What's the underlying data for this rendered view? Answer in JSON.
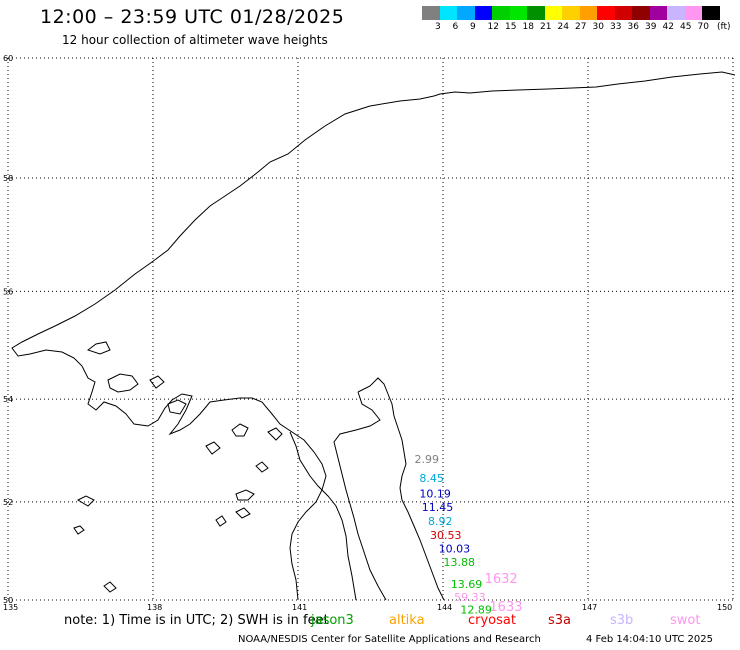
{
  "header": {
    "title": "12:00 – 23:59 UTC 01/28/2025",
    "subtitle": "12 hour collection of altimeter wave heights"
  },
  "colorbar": {
    "labels": [
      "3",
      "6",
      "9",
      "12",
      "15",
      "18",
      "21",
      "24",
      "27",
      "30",
      "33",
      "36",
      "39",
      "42",
      "45",
      "70"
    ],
    "unit": "(ft)",
    "colors": [
      "#808080",
      "#00e5ff",
      "#00a8ff",
      "#0000ff",
      "#00d000",
      "#00e600",
      "#009000",
      "#ffff00",
      "#ffd000",
      "#ffa000",
      "#ff0000",
      "#d00000",
      "#900000",
      "#a000a0",
      "#c8b4ff",
      "#ff96f0",
      "#000000"
    ]
  },
  "map": {
    "lat_labels": [
      "60",
      "58",
      "56",
      "54",
      "52",
      "50"
    ],
    "lon_labels": [
      "135",
      "138",
      "141",
      "144",
      "147",
      "150"
    ],
    "observations": [
      {
        "value": "2.99",
        "color": "#808080",
        "lon": 143.7,
        "lat": 52.85
      },
      {
        "value": "8.45",
        "color": "#00a8d8",
        "lon": 143.8,
        "lat": 52.47
      },
      {
        "value": "10.19",
        "color": "#0000c0",
        "lon": 143.8,
        "lat": 52.17
      },
      {
        "value": "11.45",
        "color": "#0000c0",
        "lon": 143.85,
        "lat": 51.9
      },
      {
        "value": "8.92",
        "color": "#00a8d8",
        "lon": 143.98,
        "lat": 51.62
      },
      {
        "value": "30.53",
        "color": "#d00000",
        "lon": 144.02,
        "lat": 51.33
      },
      {
        "value": "10.03",
        "color": "#0000c0",
        "lon": 144.2,
        "lat": 51.06
      },
      {
        "value": "13.88",
        "color": "#00c000",
        "lon": 144.3,
        "lat": 50.78
      },
      {
        "value": "13.69",
        "color": "#00c000",
        "lon": 144.45,
        "lat": 50.33
      },
      {
        "value": "59.33",
        "color": "#ff96f0",
        "lon": 144.52,
        "lat": 50.06
      },
      {
        "value": "12.89",
        "color": "#00c000",
        "lon": 144.65,
        "lat": 49.8
      },
      {
        "value": "1632",
        "color": "#ff96f0",
        "lon": 145.15,
        "lat": 50.43,
        "big": true
      },
      {
        "value": "1633",
        "color": "#ff96f0",
        "lon": 145.25,
        "lat": 49.85,
        "big": true
      }
    ]
  },
  "legend": {
    "note": "note: 1) Time is in UTC; 2) SWH is in feet",
    "satellites": [
      {
        "name": "jason3",
        "color": "#00a000"
      },
      {
        "name": "altika",
        "color": "#ffa000"
      },
      {
        "name": "cryosat",
        "color": "#ff0000"
      },
      {
        "name": "s3a",
        "color": "#c00000"
      },
      {
        "name": "s3b",
        "color": "#c8b4ff"
      },
      {
        "name": "swot",
        "color": "#ff96f0"
      }
    ]
  },
  "footer": {
    "credit": "NOAA/NESDIS Center for Satellite Applications and Research",
    "date": "4 Feb 14:04:10 UTC 2025"
  }
}
